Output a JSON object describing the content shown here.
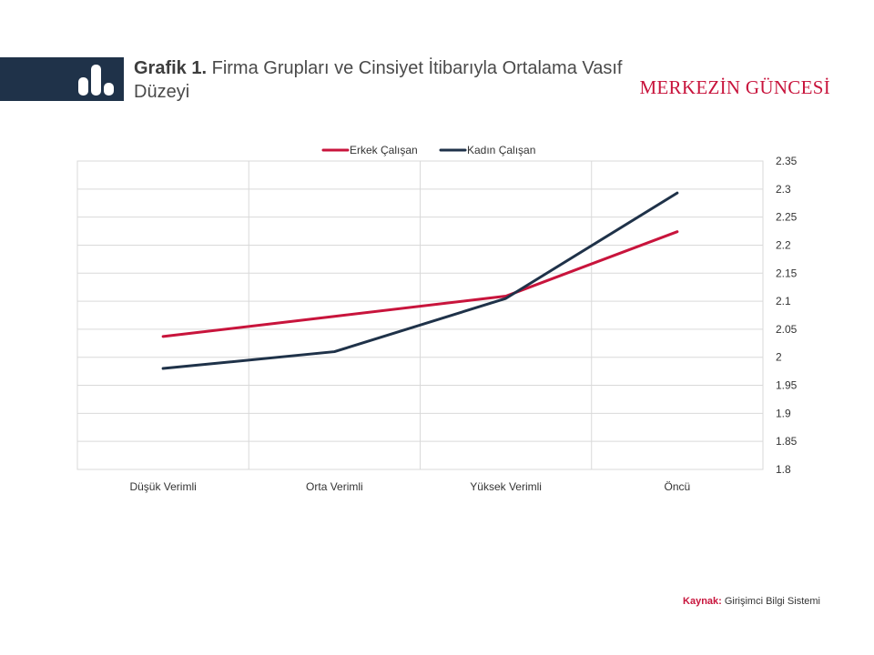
{
  "header": {
    "title_bold": "Grafik 1.",
    "title_rest": "Firma Grupları ve Cinsiyet İtibarıyla Ortalama Vasıf Düzeyi",
    "brand": "MERKEZİN GÜNCESİ",
    "icon": "bar-chart-icon"
  },
  "footer": {
    "source_label": "Kaynak:",
    "source_text": "Girişimci Bilgi Sistemi"
  },
  "colors": {
    "header_bg": "#1f3249",
    "accent": "#c8143c",
    "erkek": "#c8143c",
    "kadin": "#1f3249"
  },
  "chart_data": {
    "type": "line",
    "title": "",
    "xlabel": "",
    "ylabel": "",
    "categories": [
      "Düşük Verimli",
      "Orta Verimli",
      "Yüksek Verimli",
      "Öncü"
    ],
    "series": [
      {
        "name": "Erkek Çalışan",
        "values": [
          2.037,
          2.073,
          2.109,
          2.224
        ],
        "color": "#c8143c"
      },
      {
        "name": "Kadın Çalışan",
        "values": [
          1.98,
          2.01,
          2.105,
          2.293
        ],
        "color": "#1f3249"
      }
    ],
    "ylim": [
      1.8,
      2.35
    ],
    "yticks": [
      "1.8",
      "1.85",
      "1.9",
      "1.95",
      "2",
      "2.05",
      "2.1",
      "2.15",
      "2.2",
      "2.25",
      "2.3",
      "2.35"
    ],
    "grid": true,
    "legend": "top-center",
    "y_axis_side": "right"
  }
}
